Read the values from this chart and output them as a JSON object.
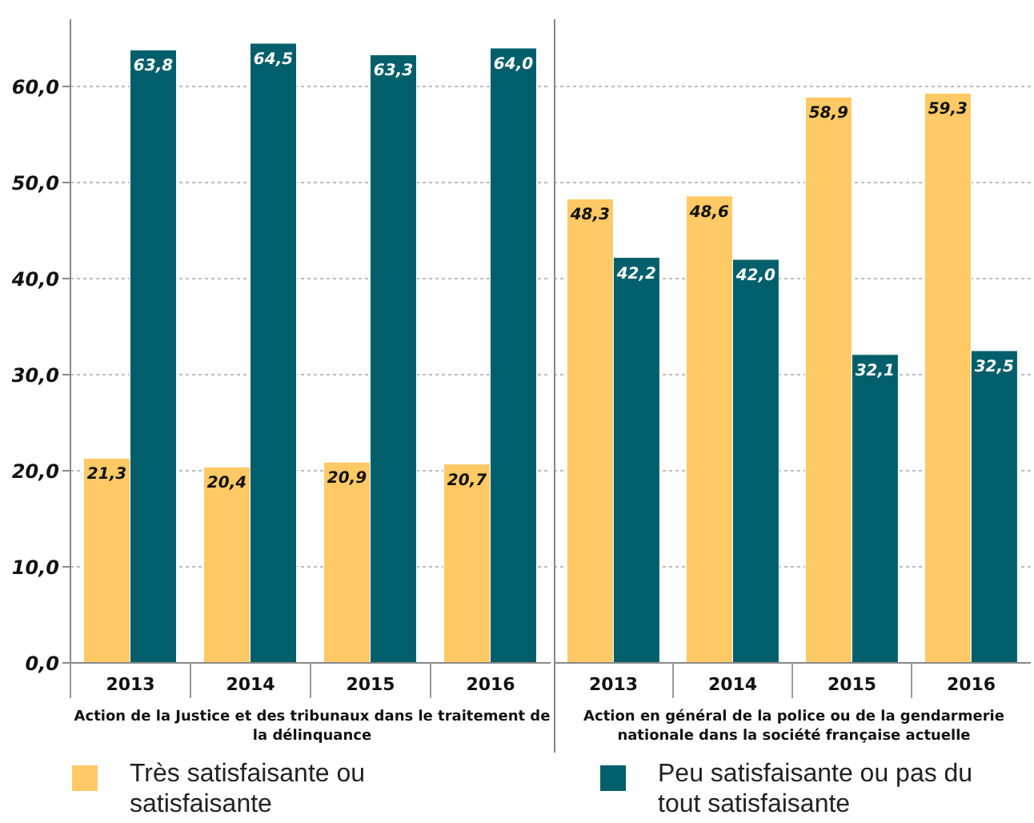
{
  "chart_data": [
    {
      "type": "bar",
      "xlabel": "Action de la Justice et des tribunaux dans le traitement de la délinquance",
      "categories": [
        "2013",
        "2014",
        "2015",
        "2016"
      ],
      "series": [
        {
          "name": "Très satisfaisante ou satisfaisante",
          "color": "#ffc966",
          "values": [
            21.3,
            20.4,
            20.9,
            20.7
          ]
        },
        {
          "name": "Peu satisfaisante ou pas du tout satisfaisante",
          "color": "#005f6b",
          "values": [
            63.8,
            64.5,
            63.3,
            64.0
          ]
        }
      ],
      "value_labels": [
        [
          "21,3",
          "20,4",
          "20,9",
          "20,7"
        ],
        [
          "63,8",
          "64,5",
          "63,3",
          "64,0"
        ]
      ],
      "ylim": [
        0,
        67
      ],
      "yticks": [
        {
          "value": 0,
          "label": "0,0"
        },
        {
          "value": 10,
          "label": "10,0"
        },
        {
          "value": 20,
          "label": "20,0"
        },
        {
          "value": 30,
          "label": "30,0"
        },
        {
          "value": 40,
          "label": "40,0"
        },
        {
          "value": 50,
          "label": "50,0"
        },
        {
          "value": 60,
          "label": "60,0"
        }
      ],
      "grid": "y",
      "legend": "bottom"
    },
    {
      "type": "bar",
      "xlabel": "Action en général de la police ou de la gendarmerie nationale dans la société française actuelle",
      "categories": [
        "2013",
        "2014",
        "2015",
        "2016"
      ],
      "series": [
        {
          "color": "#ffc966",
          "values": [
            48.3,
            48.6,
            58.9,
            59.3
          ]
        },
        {
          "color": "#005f6b",
          "values": [
            42.2,
            42.0,
            32.1,
            32.5
          ]
        }
      ],
      "value_labels": [
        [
          "48,3",
          "48,6",
          "58,9",
          "59,3"
        ],
        [
          "42,2",
          "42,0",
          "32,1",
          "32,5"
        ]
      ],
      "ylim": [
        0,
        67
      ],
      "yticks": [
        0,
        10,
        20,
        30,
        40,
        50,
        60
      ],
      "grid": "y",
      "tick_labels": "x"
    }
  ]
}
